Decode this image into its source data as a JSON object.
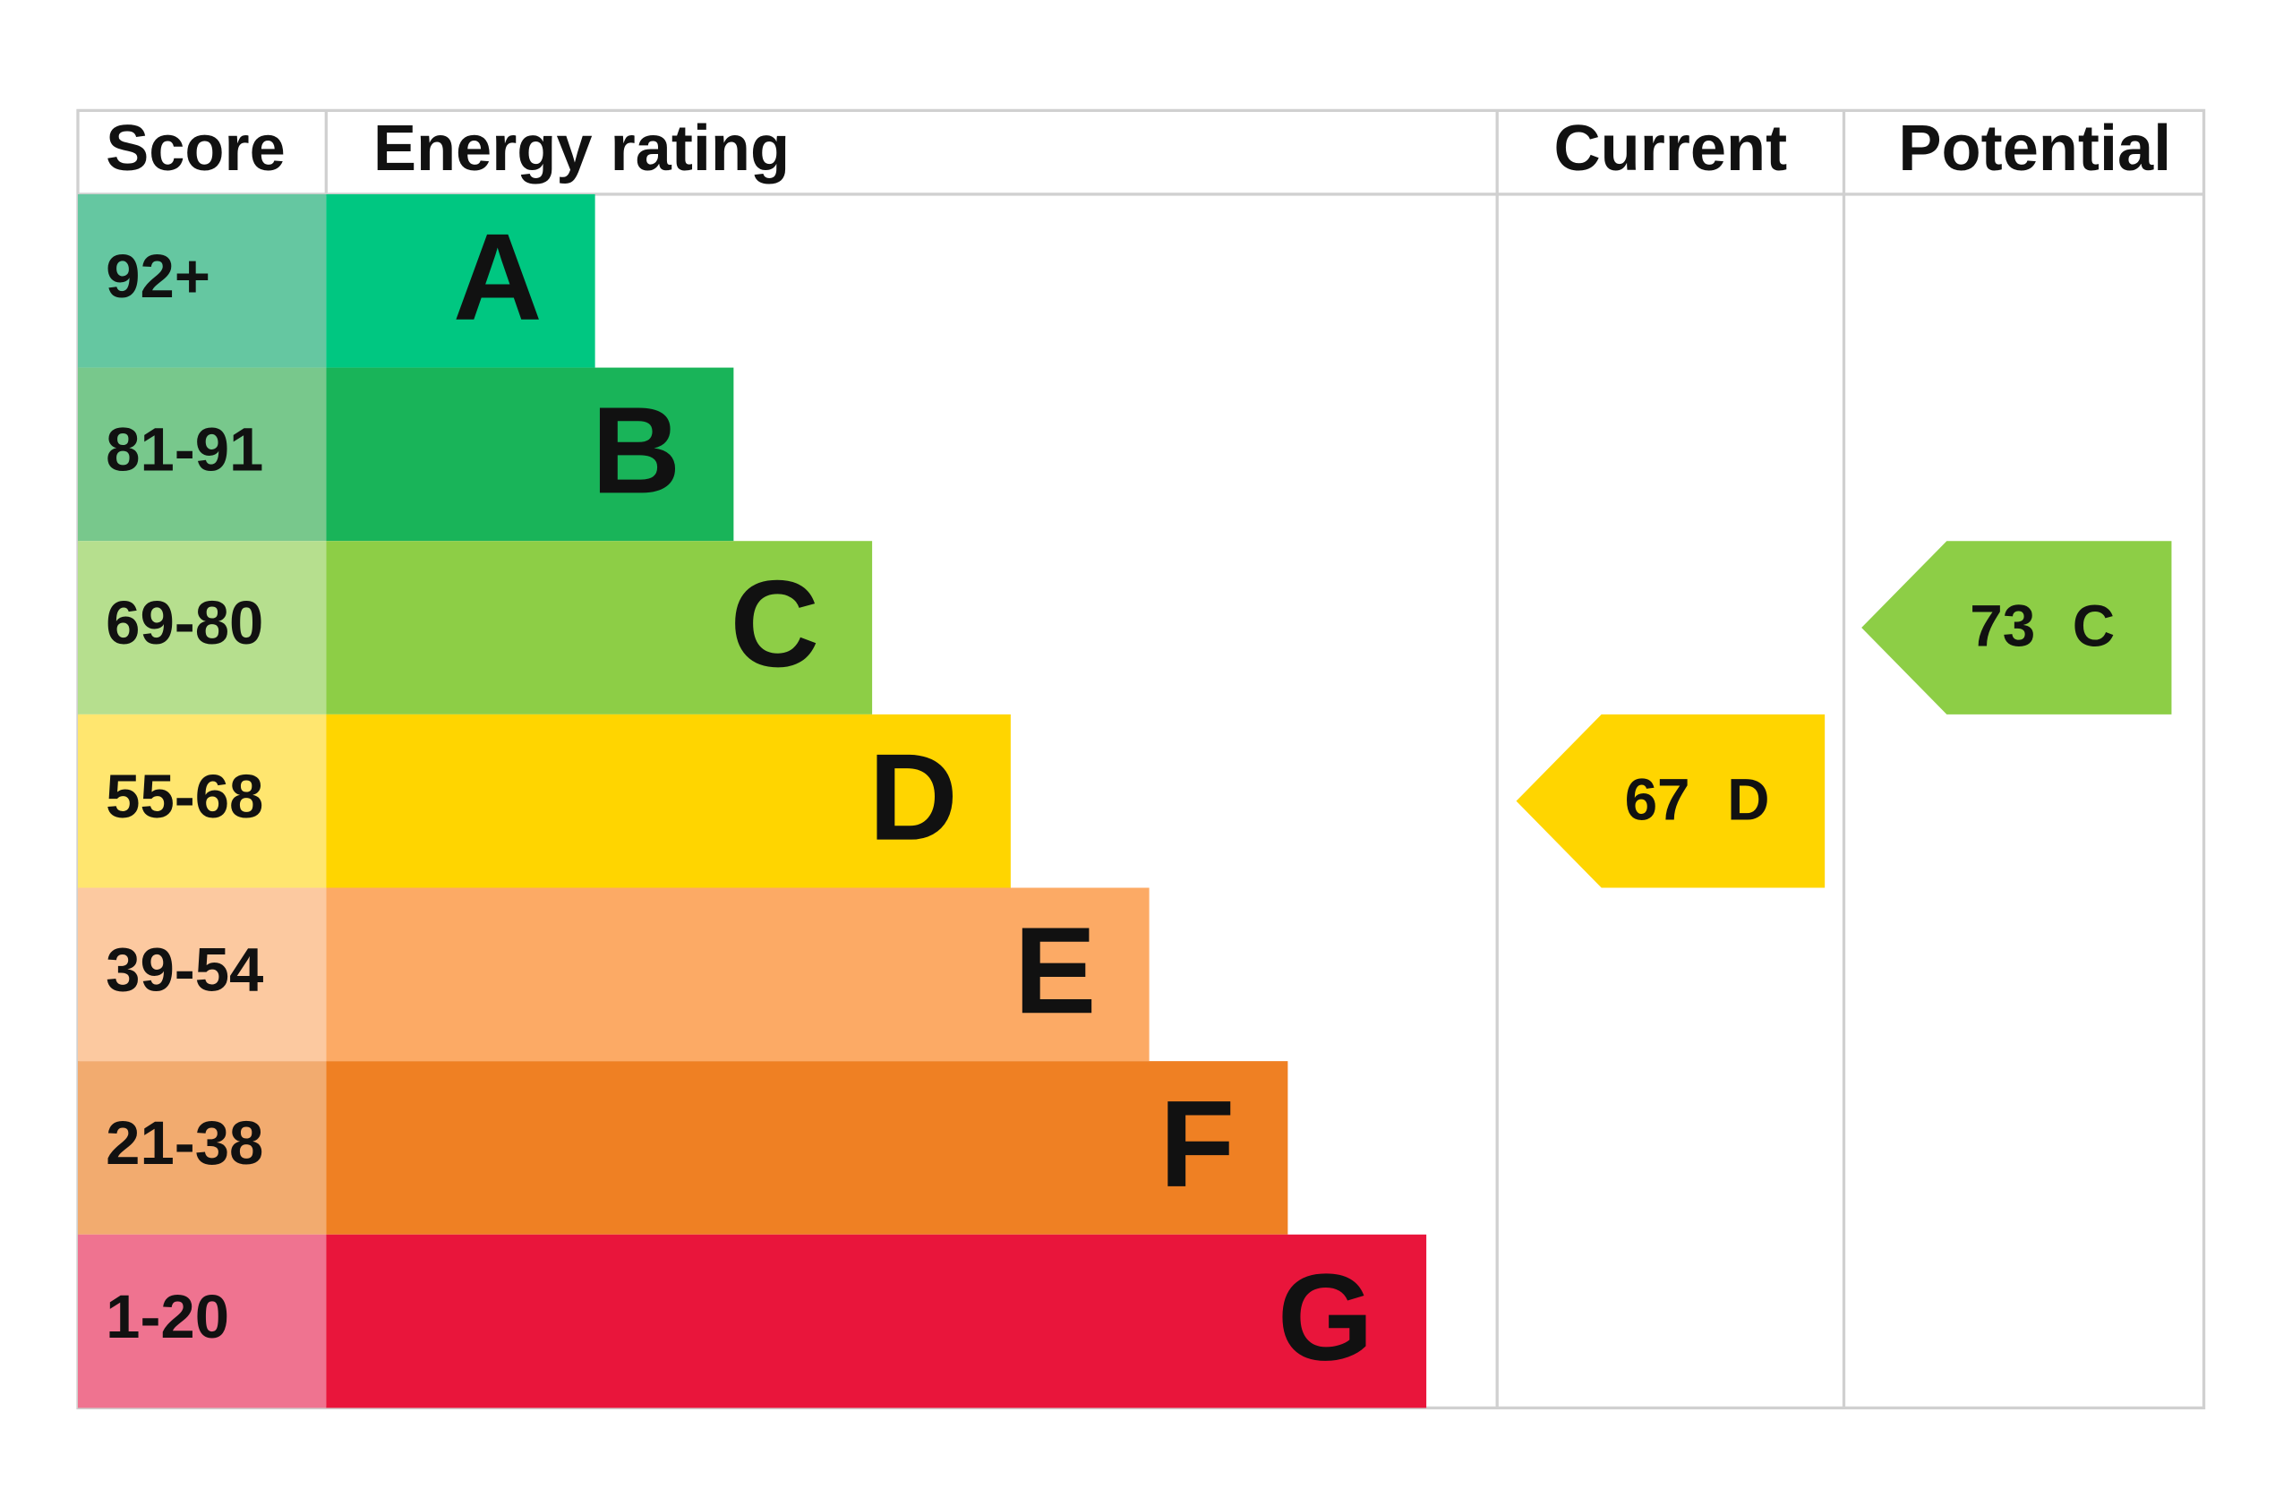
{
  "header": {
    "score": "Score",
    "energy_rating": "Energy rating",
    "current": "Current",
    "potential": "Potential"
  },
  "bands": [
    {
      "score": "92+",
      "rating": "A",
      "color": "#00c781",
      "score_color": "#65c7a1"
    },
    {
      "score": "81-91",
      "rating": "B",
      "color": "#19b459",
      "score_color": "#78c88c"
    },
    {
      "score": "69-80",
      "rating": "C",
      "color": "#8dce46",
      "score_color": "#b6df8e"
    },
    {
      "score": "55-68",
      "rating": "D",
      "color": "#ffd500",
      "score_color": "#ffe66f"
    },
    {
      "score": "39-54",
      "rating": "E",
      "color": "#fcaa65",
      "score_color": "#fcc9a0"
    },
    {
      "score": "21-38",
      "rating": "F",
      "color": "#ef8023",
      "score_color": "#f2ab6f"
    },
    {
      "score": "1-20",
      "rating": "G",
      "color": "#e9153b",
      "score_color": "#ef7390"
    }
  ],
  "current": {
    "value": 67,
    "rating": "D"
  },
  "potential": {
    "value": 73,
    "rating": "C"
  }
}
